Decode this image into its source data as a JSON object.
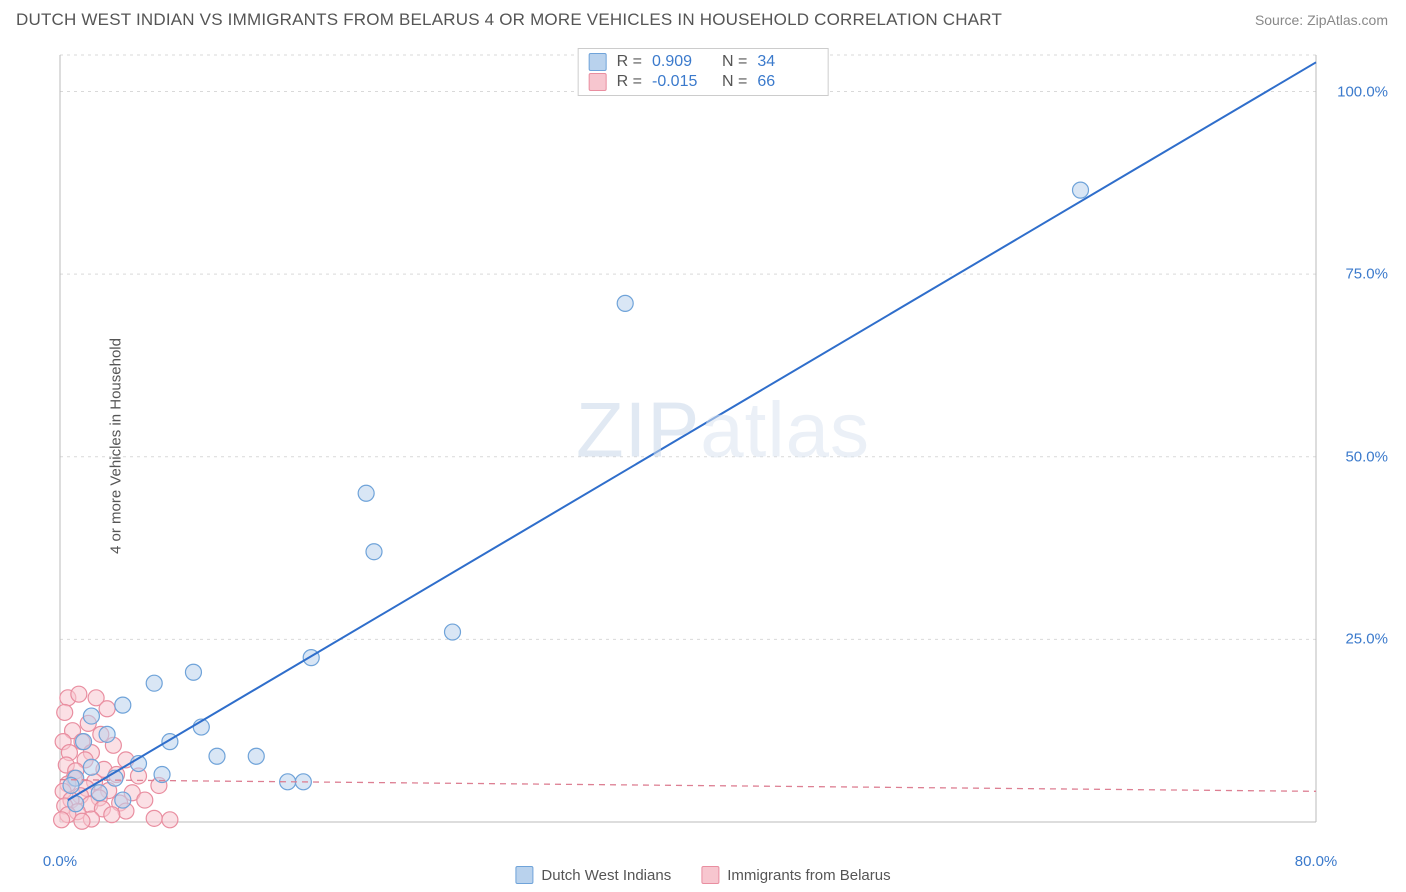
{
  "title": "DUTCH WEST INDIAN VS IMMIGRANTS FROM BELARUS 4 OR MORE VEHICLES IN HOUSEHOLD CORRELATION CHART",
  "source": "Source: ZipAtlas.com",
  "watermark": "ZIPatlas",
  "y_axis_label": "4 or more Vehicles in Household",
  "chart": {
    "type": "scatter",
    "background_color": "#ffffff",
    "grid_color": "#d9d9d9",
    "axis_line_color": "#bbbbbb",
    "tick_label_color": "#3b7acc",
    "tick_label_fontsize": 15,
    "xlim": [
      0,
      80
    ],
    "ylim": [
      0,
      105
    ],
    "x_ticks": [
      0.0,
      80.0
    ],
    "x_tick_labels": [
      "0.0%",
      "80.0%"
    ],
    "y_ticks": [
      25.0,
      50.0,
      75.0,
      100.0
    ],
    "y_tick_labels": [
      "25.0%",
      "50.0%",
      "75.0%",
      "100.0%"
    ],
    "marker_radius": 8,
    "marker_stroke_width": 1.2,
    "series": [
      {
        "name": "Dutch West Indians",
        "fill": "#b9d2ed",
        "stroke": "#6fa3d9",
        "fill_opacity": 0.55,
        "trend_line": {
          "x1": 0.5,
          "y1": 3,
          "x2": 80,
          "y2": 104,
          "color": "#2f6ecb",
          "width": 2,
          "dash": "none"
        },
        "stats": {
          "R": "0.909",
          "N": "34"
        },
        "points": [
          [
            65,
            86.5
          ],
          [
            36,
            71
          ],
          [
            19.5,
            45
          ],
          [
            20,
            37
          ],
          [
            25,
            26
          ],
          [
            16,
            22.5
          ],
          [
            8.5,
            20.5
          ],
          [
            6,
            19
          ],
          [
            4,
            16
          ],
          [
            9,
            13
          ],
          [
            2,
            14.5
          ],
          [
            3,
            12
          ],
          [
            7,
            11
          ],
          [
            1.5,
            11
          ],
          [
            10,
            9
          ],
          [
            12.5,
            9
          ],
          [
            14.5,
            5.5
          ],
          [
            15.5,
            5.5
          ],
          [
            5,
            8
          ],
          [
            6.5,
            6.5
          ],
          [
            3.5,
            6
          ],
          [
            2,
            7.5
          ],
          [
            1,
            6
          ],
          [
            0.7,
            5
          ],
          [
            2.5,
            4
          ],
          [
            4,
            3
          ],
          [
            1,
            2.5
          ]
        ]
      },
      {
        "name": "Immigrants from Belarus",
        "fill": "#f7c6cf",
        "stroke": "#e98ea0",
        "fill_opacity": 0.55,
        "trend_line": {
          "x1": 0,
          "y1": 5.8,
          "x2": 80,
          "y2": 4.2,
          "color": "#dd7f92",
          "width": 1.3,
          "dash": "6,5"
        },
        "stats": {
          "R": "-0.015",
          "N": "66"
        },
        "points": [
          [
            0.5,
            17
          ],
          [
            1.2,
            17.5
          ],
          [
            2.3,
            17
          ],
          [
            3.0,
            15.5
          ],
          [
            0.3,
            15
          ],
          [
            1.8,
            13.5
          ],
          [
            0.8,
            12.5
          ],
          [
            2.6,
            12
          ],
          [
            1.4,
            11
          ],
          [
            0.2,
            11
          ],
          [
            3.4,
            10.5
          ],
          [
            2.0,
            9.5
          ],
          [
            0.6,
            9.5
          ],
          [
            1.6,
            8.5
          ],
          [
            4.2,
            8.5
          ],
          [
            0.4,
            7.8
          ],
          [
            2.8,
            7.2
          ],
          [
            1.0,
            7
          ],
          [
            3.6,
            6.5
          ],
          [
            5.0,
            6.3
          ],
          [
            0.9,
            6
          ],
          [
            2.2,
            5.5
          ],
          [
            6.3,
            5
          ],
          [
            0.5,
            5.2
          ],
          [
            1.7,
            4.6
          ],
          [
            3.1,
            4.3
          ],
          [
            4.6,
            4
          ],
          [
            0.2,
            4.2
          ],
          [
            1.3,
            3.6
          ],
          [
            2.5,
            3.3
          ],
          [
            5.4,
            3
          ],
          [
            0.7,
            3
          ],
          [
            3.8,
            2.6
          ],
          [
            1.9,
            2.4
          ],
          [
            0.3,
            2.2
          ],
          [
            2.7,
            1.8
          ],
          [
            4.2,
            1.5
          ],
          [
            1.1,
            1.4
          ],
          [
            0.5,
            1
          ],
          [
            3.3,
            1
          ],
          [
            6.0,
            0.5
          ],
          [
            7.0,
            0.3
          ],
          [
            2.0,
            0.4
          ],
          [
            0.1,
            0.3
          ],
          [
            1.4,
            0.1
          ]
        ]
      }
    ]
  },
  "stats_box": {
    "rows": [
      {
        "swatch_fill": "#b9d2ed",
        "swatch_stroke": "#6fa3d9",
        "R": "0.909",
        "N": "34"
      },
      {
        "swatch_fill": "#f7c6cf",
        "swatch_stroke": "#e98ea0",
        "R": "-0.015",
        "N": "66"
      }
    ]
  },
  "legend": {
    "items": [
      {
        "label": "Dutch West Indians",
        "fill": "#b9d2ed",
        "stroke": "#6fa3d9"
      },
      {
        "label": "Immigrants from Belarus",
        "fill": "#f7c6cf",
        "stroke": "#e98ea0"
      }
    ]
  }
}
